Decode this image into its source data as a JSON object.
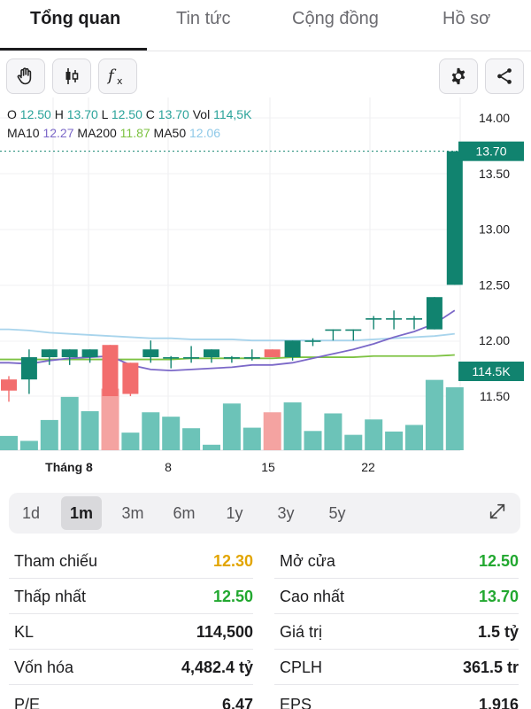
{
  "tabs": [
    {
      "label": "Tổng quan",
      "active": true
    },
    {
      "label": "Tin tức",
      "active": false
    },
    {
      "label": "Cộng đồng",
      "active": false
    },
    {
      "label": "Hồ sơ",
      "active": false
    }
  ],
  "toolbar": {
    "icons": [
      "hand-icon",
      "candlestick-icon",
      "function-icon",
      "gear-icon",
      "share-icon"
    ]
  },
  "ohlc": {
    "o_label": "O",
    "o": "12.50",
    "h_label": "H",
    "h": "13.70",
    "l_label": "L",
    "l": "12.50",
    "c_label": "C",
    "c": "13.70",
    "vol_label": "Vol",
    "vol": "114,5K"
  },
  "ma": {
    "ma10_label": "MA10",
    "ma10": "12.27",
    "ma200_label": "MA200",
    "ma200": "11.87",
    "ma50_label": "MA50",
    "ma50": "12.06"
  },
  "colors": {
    "up": "#11836f",
    "down": "#f26d6d",
    "vol_up": "#6cc3b8",
    "vol_down": "#f4a3a1",
    "ma10": "#7b68c8",
    "ma200": "#7dc242",
    "ma50": "#a8d4ec",
    "last_price_tag": "#11836f",
    "yellow": "#e2a500",
    "green": "#22a830"
  },
  "chart_data": {
    "type": "candlestick",
    "y_ticks": [
      "14.00",
      "13.50",
      "13.00",
      "12.50",
      "12.00",
      "11.50"
    ],
    "x_labels": [
      "Tháng 8",
      "8",
      "15",
      "22"
    ],
    "last_price_label": "13.70",
    "last_volume_label": "114.5K",
    "candles": [
      {
        "o": 11.65,
        "h": 11.68,
        "l": 11.45,
        "c": 11.55
      },
      {
        "o": 11.65,
        "h": 11.92,
        "l": 11.52,
        "c": 11.85
      },
      {
        "o": 11.85,
        "h": 11.92,
        "l": 11.78,
        "c": 11.92
      },
      {
        "o": 11.85,
        "h": 11.92,
        "l": 11.78,
        "c": 11.92
      },
      {
        "o": 11.85,
        "h": 11.92,
        "l": 11.8,
        "c": 11.92
      },
      {
        "o": 11.96,
        "h": 11.96,
        "l": 11.5,
        "c": 11.5
      },
      {
        "o": 11.8,
        "h": 11.8,
        "l": 11.5,
        "c": 11.52
      },
      {
        "o": 11.85,
        "h": 12.0,
        "l": 11.8,
        "c": 11.92
      },
      {
        "o": 11.85,
        "h": 11.86,
        "l": 11.75,
        "c": 11.85
      },
      {
        "o": 11.85,
        "h": 11.95,
        "l": 11.8,
        "c": 11.85
      },
      {
        "o": 11.85,
        "h": 11.92,
        "l": 11.8,
        "c": 11.92
      },
      {
        "o": 11.85,
        "h": 11.86,
        "l": 11.8,
        "c": 11.85
      },
      {
        "o": 11.85,
        "h": 11.92,
        "l": 11.82,
        "c": 11.85
      },
      {
        "o": 11.92,
        "h": 11.92,
        "l": 11.85,
        "c": 11.85
      },
      {
        "o": 11.85,
        "h": 12.0,
        "l": 11.82,
        "c": 12.0
      },
      {
        "o": 12.0,
        "h": 12.02,
        "l": 11.95,
        "c": 12.0
      },
      {
        "o": 12.1,
        "h": 12.1,
        "l": 12.0,
        "c": 12.1
      },
      {
        "o": 12.1,
        "h": 12.1,
        "l": 12.0,
        "c": 12.1
      },
      {
        "o": 12.2,
        "h": 12.22,
        "l": 12.1,
        "c": 12.2
      },
      {
        "o": 12.2,
        "h": 12.27,
        "l": 12.1,
        "c": 12.2
      },
      {
        "o": 12.2,
        "h": 12.22,
        "l": 12.1,
        "c": 12.2
      },
      {
        "o": 12.1,
        "h": 12.39,
        "l": 12.1,
        "c": 12.39
      },
      {
        "o": 12.5,
        "h": 13.7,
        "l": 12.5,
        "c": 13.7
      }
    ],
    "volumes": [
      0.26,
      0.17,
      0.55,
      0.97,
      0.71,
      1.12,
      0.32,
      0.69,
      0.61,
      0.4,
      0.1,
      0.85,
      0.41,
      0.69,
      0.87,
      0.35,
      0.67,
      0.28,
      0.56,
      0.34,
      0.46,
      1.28,
      1.145
    ],
    "volume_direction": [
      "up",
      "up",
      "up",
      "up",
      "up",
      "down",
      "up",
      "up",
      "up",
      "up",
      "up",
      "up",
      "up",
      "down",
      "up",
      "up",
      "up",
      "up",
      "up",
      "up",
      "up",
      "up",
      "up"
    ],
    "ma10": [
      11.8,
      11.79,
      11.82,
      11.84,
      11.85,
      11.86,
      11.78,
      11.74,
      11.73,
      11.74,
      11.75,
      11.76,
      11.78,
      11.78,
      11.8,
      11.84,
      11.88,
      11.92,
      11.97,
      12.03,
      12.08,
      12.15,
      12.27
    ],
    "ma50": [
      12.1,
      12.09,
      12.07,
      12.06,
      12.05,
      12.04,
      12.03,
      12.02,
      12.02,
      12.01,
      12.01,
      12.01,
      12.0,
      12.0,
      12.0,
      12.0,
      12.0,
      12.0,
      12.01,
      12.02,
      12.03,
      12.04,
      12.06
    ],
    "ma200": [
      11.83,
      11.83,
      11.83,
      11.83,
      11.83,
      11.83,
      11.83,
      11.83,
      11.83,
      11.84,
      11.84,
      11.84,
      11.84,
      11.84,
      11.85,
      11.85,
      11.85,
      11.85,
      11.86,
      11.86,
      11.86,
      11.86,
      11.87
    ],
    "ylim": [
      11.2,
      14.1
    ]
  },
  "ranges": [
    {
      "label": "1d",
      "active": false
    },
    {
      "label": "1m",
      "active": true
    },
    {
      "label": "3m",
      "active": false
    },
    {
      "label": "6m",
      "active": false
    },
    {
      "label": "1y",
      "active": false
    },
    {
      "label": "3y",
      "active": false
    },
    {
      "label": "5y",
      "active": false
    }
  ],
  "stats": {
    "left": [
      {
        "label": "Tham chiếu",
        "value": "12.30",
        "color": "yellow"
      },
      {
        "label": "Thấp nhất",
        "value": "12.50",
        "color": "green"
      },
      {
        "label": "KL",
        "value": "114,500",
        "color": "default"
      },
      {
        "label": "Vốn hóa",
        "value": "4,482.4 tỷ",
        "color": "default"
      },
      {
        "label": "P/E",
        "value": "6.47",
        "color": "default"
      }
    ],
    "right": [
      {
        "label": "Mở cửa",
        "value": "12.50",
        "color": "green"
      },
      {
        "label": "Cao nhất",
        "value": "13.70",
        "color": "green"
      },
      {
        "label": "Giá trị",
        "value": "1.5 tỷ",
        "color": "default"
      },
      {
        "label": "CPLH",
        "value": "361.5 tr",
        "color": "default"
      },
      {
        "label": "EPS",
        "value": "1,916",
        "color": "default"
      }
    ]
  }
}
